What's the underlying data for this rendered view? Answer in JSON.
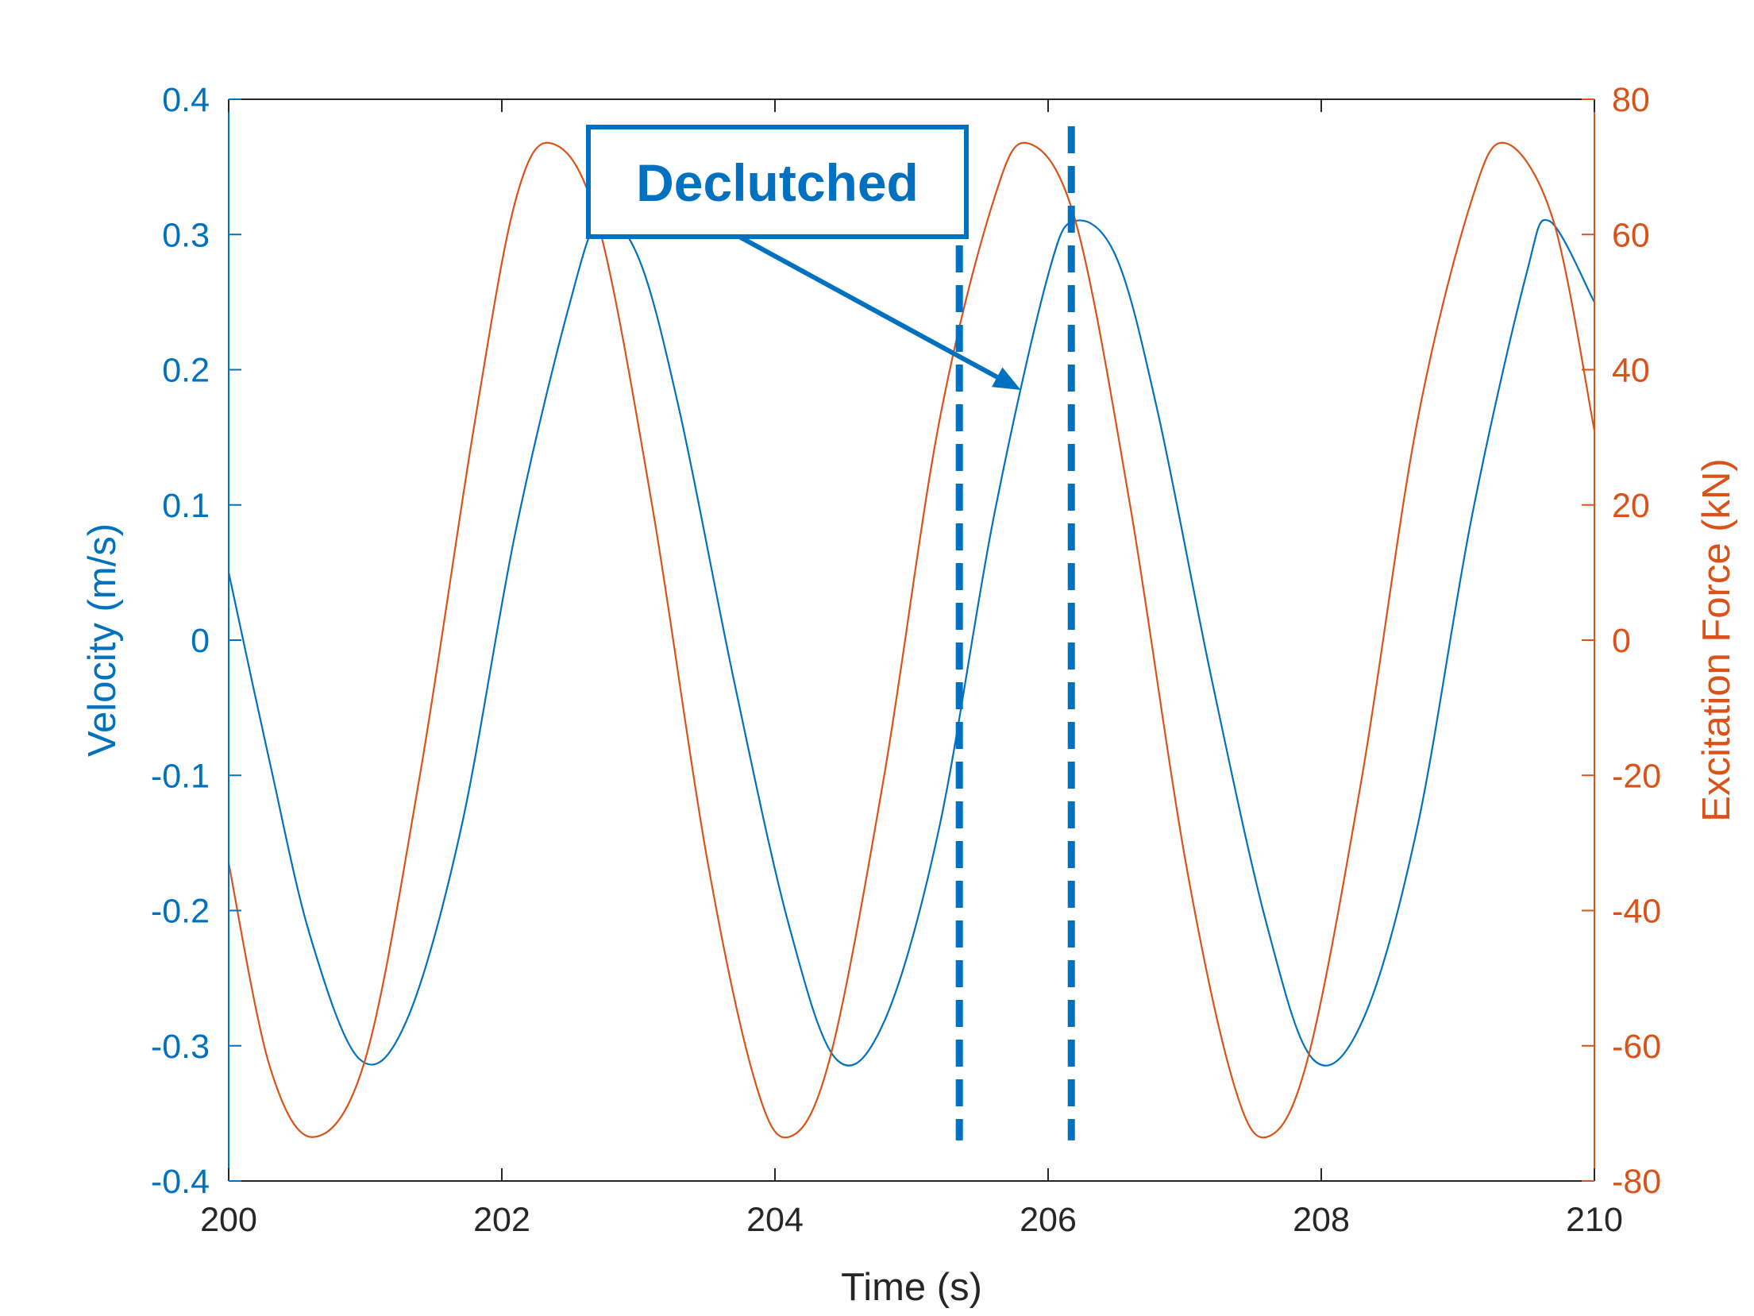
{
  "chart_data": {
    "type": "line",
    "xlabel": "Time (s)",
    "ylabel_left": "Velocity (m/s)",
    "ylabel_right": "Excitation Force (kN)",
    "xlim": [
      200,
      210
    ],
    "ylim_left": [
      -0.4,
      0.4
    ],
    "ylim_right": [
      -80,
      80
    ],
    "x_ticks": [
      "200",
      "202",
      "204",
      "206",
      "208",
      "210"
    ],
    "y_left_ticks": [
      "0.4",
      "0.3",
      "0.2",
      "0.1",
      "0",
      "-0.1",
      "-0.2",
      "-0.3",
      "-0.4"
    ],
    "y_right_ticks": [
      "80",
      "60",
      "40",
      "20",
      "0",
      "-20",
      "-40",
      "-60",
      "-80"
    ],
    "grid": false,
    "colors": {
      "velocity": "#0072BD",
      "force": "#D95319",
      "axis_left": "#0072BD",
      "axis_right": "#D95319",
      "axis_x": "#262626",
      "annotation": "#0070C0"
    },
    "series": [
      {
        "axis": "left",
        "x": [
          200.0,
          200.3,
          200.6,
          200.96,
          201.3,
          201.7,
          202.1,
          202.5,
          202.72,
          203.0,
          203.3,
          203.7,
          204.1,
          204.45,
          204.8,
          205.2,
          205.6,
          206.0,
          206.2,
          206.5,
          206.8,
          207.2,
          207.6,
          207.94,
          208.3,
          208.7,
          209.1,
          209.5,
          209.67,
          210.0
        ],
        "y": [
          0.05,
          -0.09,
          -0.22,
          -0.31,
          -0.282,
          -0.14,
          0.08,
          0.25,
          0.31,
          0.283,
          0.17,
          -0.03,
          -0.21,
          -0.31,
          -0.282,
          -0.14,
          0.09,
          0.27,
          0.31,
          0.283,
          0.17,
          -0.03,
          -0.21,
          -0.31,
          -0.282,
          -0.14,
          0.09,
          0.27,
          0.31,
          0.25
        ]
      },
      {
        "axis": "right",
        "x": [
          200.0,
          200.3,
          200.62,
          201.0,
          201.4,
          201.8,
          202.1,
          202.36,
          202.7,
          203.1,
          203.5,
          203.85,
          204.1,
          204.4,
          204.8,
          205.2,
          205.6,
          205.85,
          206.2,
          206.6,
          207.0,
          207.35,
          207.6,
          207.9,
          208.3,
          208.7,
          209.1,
          209.35,
          209.7,
          210.0
        ],
        "y": [
          -33,
          -63,
          -73.5,
          -62,
          -20,
          32,
          65,
          73.5,
          62,
          20,
          -32,
          -65,
          -73.5,
          -62,
          -20,
          32,
          65,
          73.5,
          62,
          20,
          -32,
          -65,
          -73.5,
          -62,
          -20,
          32,
          65,
          73.5,
          62,
          31
        ]
      }
    ],
    "annotations": {
      "label": "Declutched",
      "vlines_x": [
        205.35,
        206.17
      ],
      "vline_y_range": [
        -0.37,
        0.38
      ],
      "arrow_from": [
        204.0,
        0.3
      ],
      "arrow_to": [
        205.8,
        0.185
      ]
    }
  }
}
